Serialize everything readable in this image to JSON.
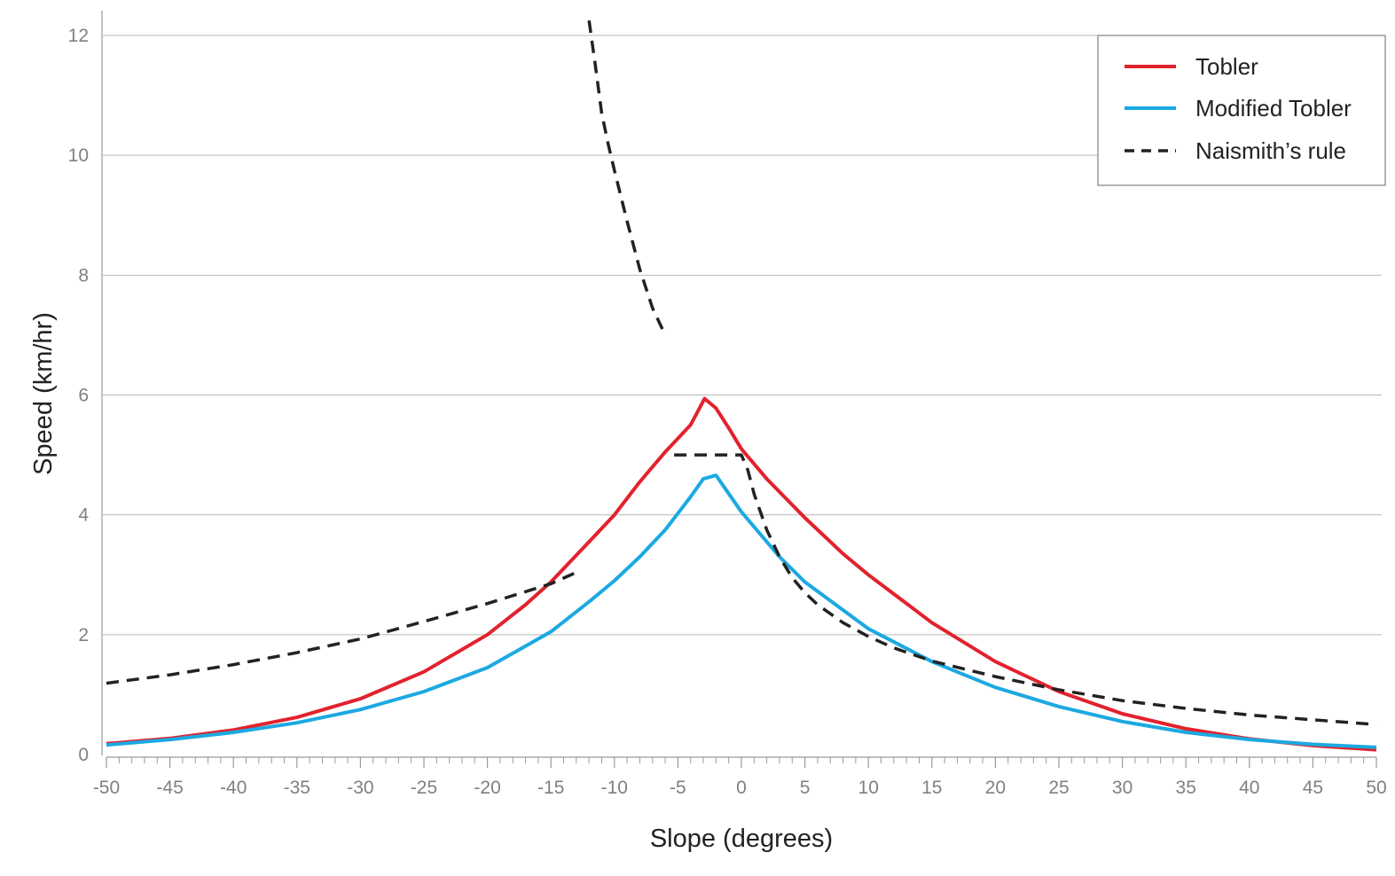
{
  "chart_data": {
    "type": "line",
    "title": "",
    "xlabel": "Slope (degrees)",
    "ylabel": "Speed (km/hr)",
    "xlim": [
      -50,
      50
    ],
    "ylim": [
      0,
      12
    ],
    "x_ticks": [
      -50,
      -45,
      -40,
      -35,
      -30,
      -25,
      -20,
      -15,
      -10,
      -5,
      0,
      5,
      10,
      15,
      20,
      25,
      30,
      35,
      40,
      45,
      50
    ],
    "x_tick_labels": [
      "-50",
      "-45",
      "-40",
      "-35",
      "-30",
      "-25",
      "-20",
      "-15",
      "-10",
      "-5",
      "0",
      "5",
      "10",
      "15",
      "20",
      "25",
      "30",
      "35",
      "40",
      "45",
      "50"
    ],
    "x_minor_tick_step": 1,
    "y_ticks": [
      0,
      2,
      4,
      6,
      8,
      10,
      12
    ],
    "y_tick_labels": [
      "0",
      "2",
      "4",
      "6",
      "8",
      "10",
      "12"
    ],
    "grid": "horizontal",
    "legend_position": "top-right",
    "series": [
      {
        "name": "Tobler",
        "color": "#e2222d",
        "style": "solid",
        "x": [
          -50,
          -45,
          -40,
          -35,
          -30,
          -25,
          -20,
          -17,
          -15,
          -12,
          -10,
          -8,
          -6,
          -4,
          -2.9,
          -2,
          -1,
          0,
          2,
          5,
          8,
          10,
          15,
          20,
          25,
          30,
          35,
          40,
          45,
          50
        ],
        "y": [
          0.18,
          0.27,
          0.41,
          0.62,
          0.93,
          1.38,
          2.0,
          2.5,
          2.88,
          3.55,
          4.0,
          4.55,
          5.05,
          5.5,
          5.94,
          5.78,
          5.45,
          5.1,
          4.6,
          3.95,
          3.35,
          3.0,
          2.2,
          1.55,
          1.05,
          0.68,
          0.43,
          0.26,
          0.15,
          0.08
        ]
      },
      {
        "name": "Modified Tobler",
        "color": "#1ca9e1",
        "style": "solid",
        "x": [
          -50,
          -45,
          -40,
          -35,
          -30,
          -25,
          -20,
          -15,
          -12,
          -10,
          -8,
          -6,
          -4,
          -3,
          -2,
          0,
          3,
          5,
          10,
          15,
          20,
          25,
          30,
          35,
          40,
          45,
          50
        ],
        "y": [
          0.16,
          0.25,
          0.37,
          0.53,
          0.75,
          1.05,
          1.45,
          2.05,
          2.55,
          2.9,
          3.3,
          3.75,
          4.3,
          4.6,
          4.66,
          4.05,
          3.3,
          2.88,
          2.1,
          1.55,
          1.12,
          0.8,
          0.55,
          0.37,
          0.25,
          0.17,
          0.12
        ]
      },
      {
        "name": "Naismith’s rule",
        "color": "#222222",
        "style": "dashed",
        "segments": [
          {
            "x": [
              -50,
              -45,
              -40,
              -35,
              -30,
              -25,
              -20,
              -15,
              -12.9
            ],
            "y": [
              1.19,
              1.33,
              1.5,
              1.7,
              1.93,
              2.22,
              2.52,
              2.85,
              3.05
            ]
          },
          {
            "x": [
              -12,
              -11.5,
              -11,
              -10.5,
              -10,
              -9,
              -8,
              -7,
              -6
            ],
            "y": [
              12.25,
              11.5,
              10.7,
              10.2,
              9.75,
              8.9,
              8.1,
              7.45,
              7.0
            ]
          },
          {
            "x": [
              -5.3,
              -2,
              0,
              0.5,
              1,
              2,
              3,
              4,
              5,
              6,
              8,
              10,
              12,
              15,
              20,
              25,
              30,
              35,
              40,
              45,
              50
            ],
            "y": [
              5.0,
              5.0,
              5.0,
              4.75,
              4.35,
              3.75,
              3.3,
              2.95,
              2.7,
              2.5,
              2.2,
              1.97,
              1.78,
              1.56,
              1.3,
              1.08,
              0.9,
              0.77,
              0.66,
              0.58,
              0.5
            ]
          }
        ]
      }
    ]
  }
}
